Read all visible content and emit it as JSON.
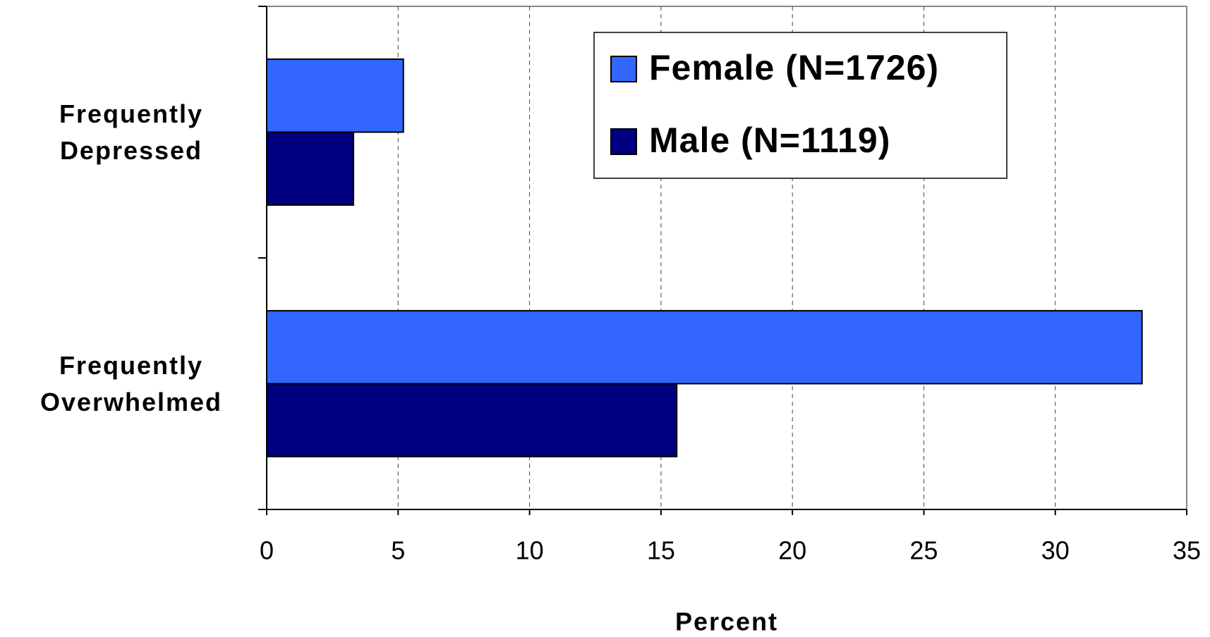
{
  "chart_data": {
    "type": "bar",
    "orientation": "horizontal",
    "x_label": "Percent",
    "categories": [
      "Frequently Depressed",
      "Frequently Overwhelmed"
    ],
    "series": [
      {
        "name": "Female (N=1726)",
        "color": "#3366ff",
        "values": [
          5.2,
          33.3
        ]
      },
      {
        "name": "Male (N=1119)",
        "color": "#000080",
        "values": [
          3.3,
          15.6
        ]
      }
    ],
    "xlim": [
      0,
      35
    ],
    "xticks": [
      0,
      5,
      10,
      15,
      20,
      25,
      30,
      35
    ],
    "grid": true,
    "legend": "upper right"
  }
}
